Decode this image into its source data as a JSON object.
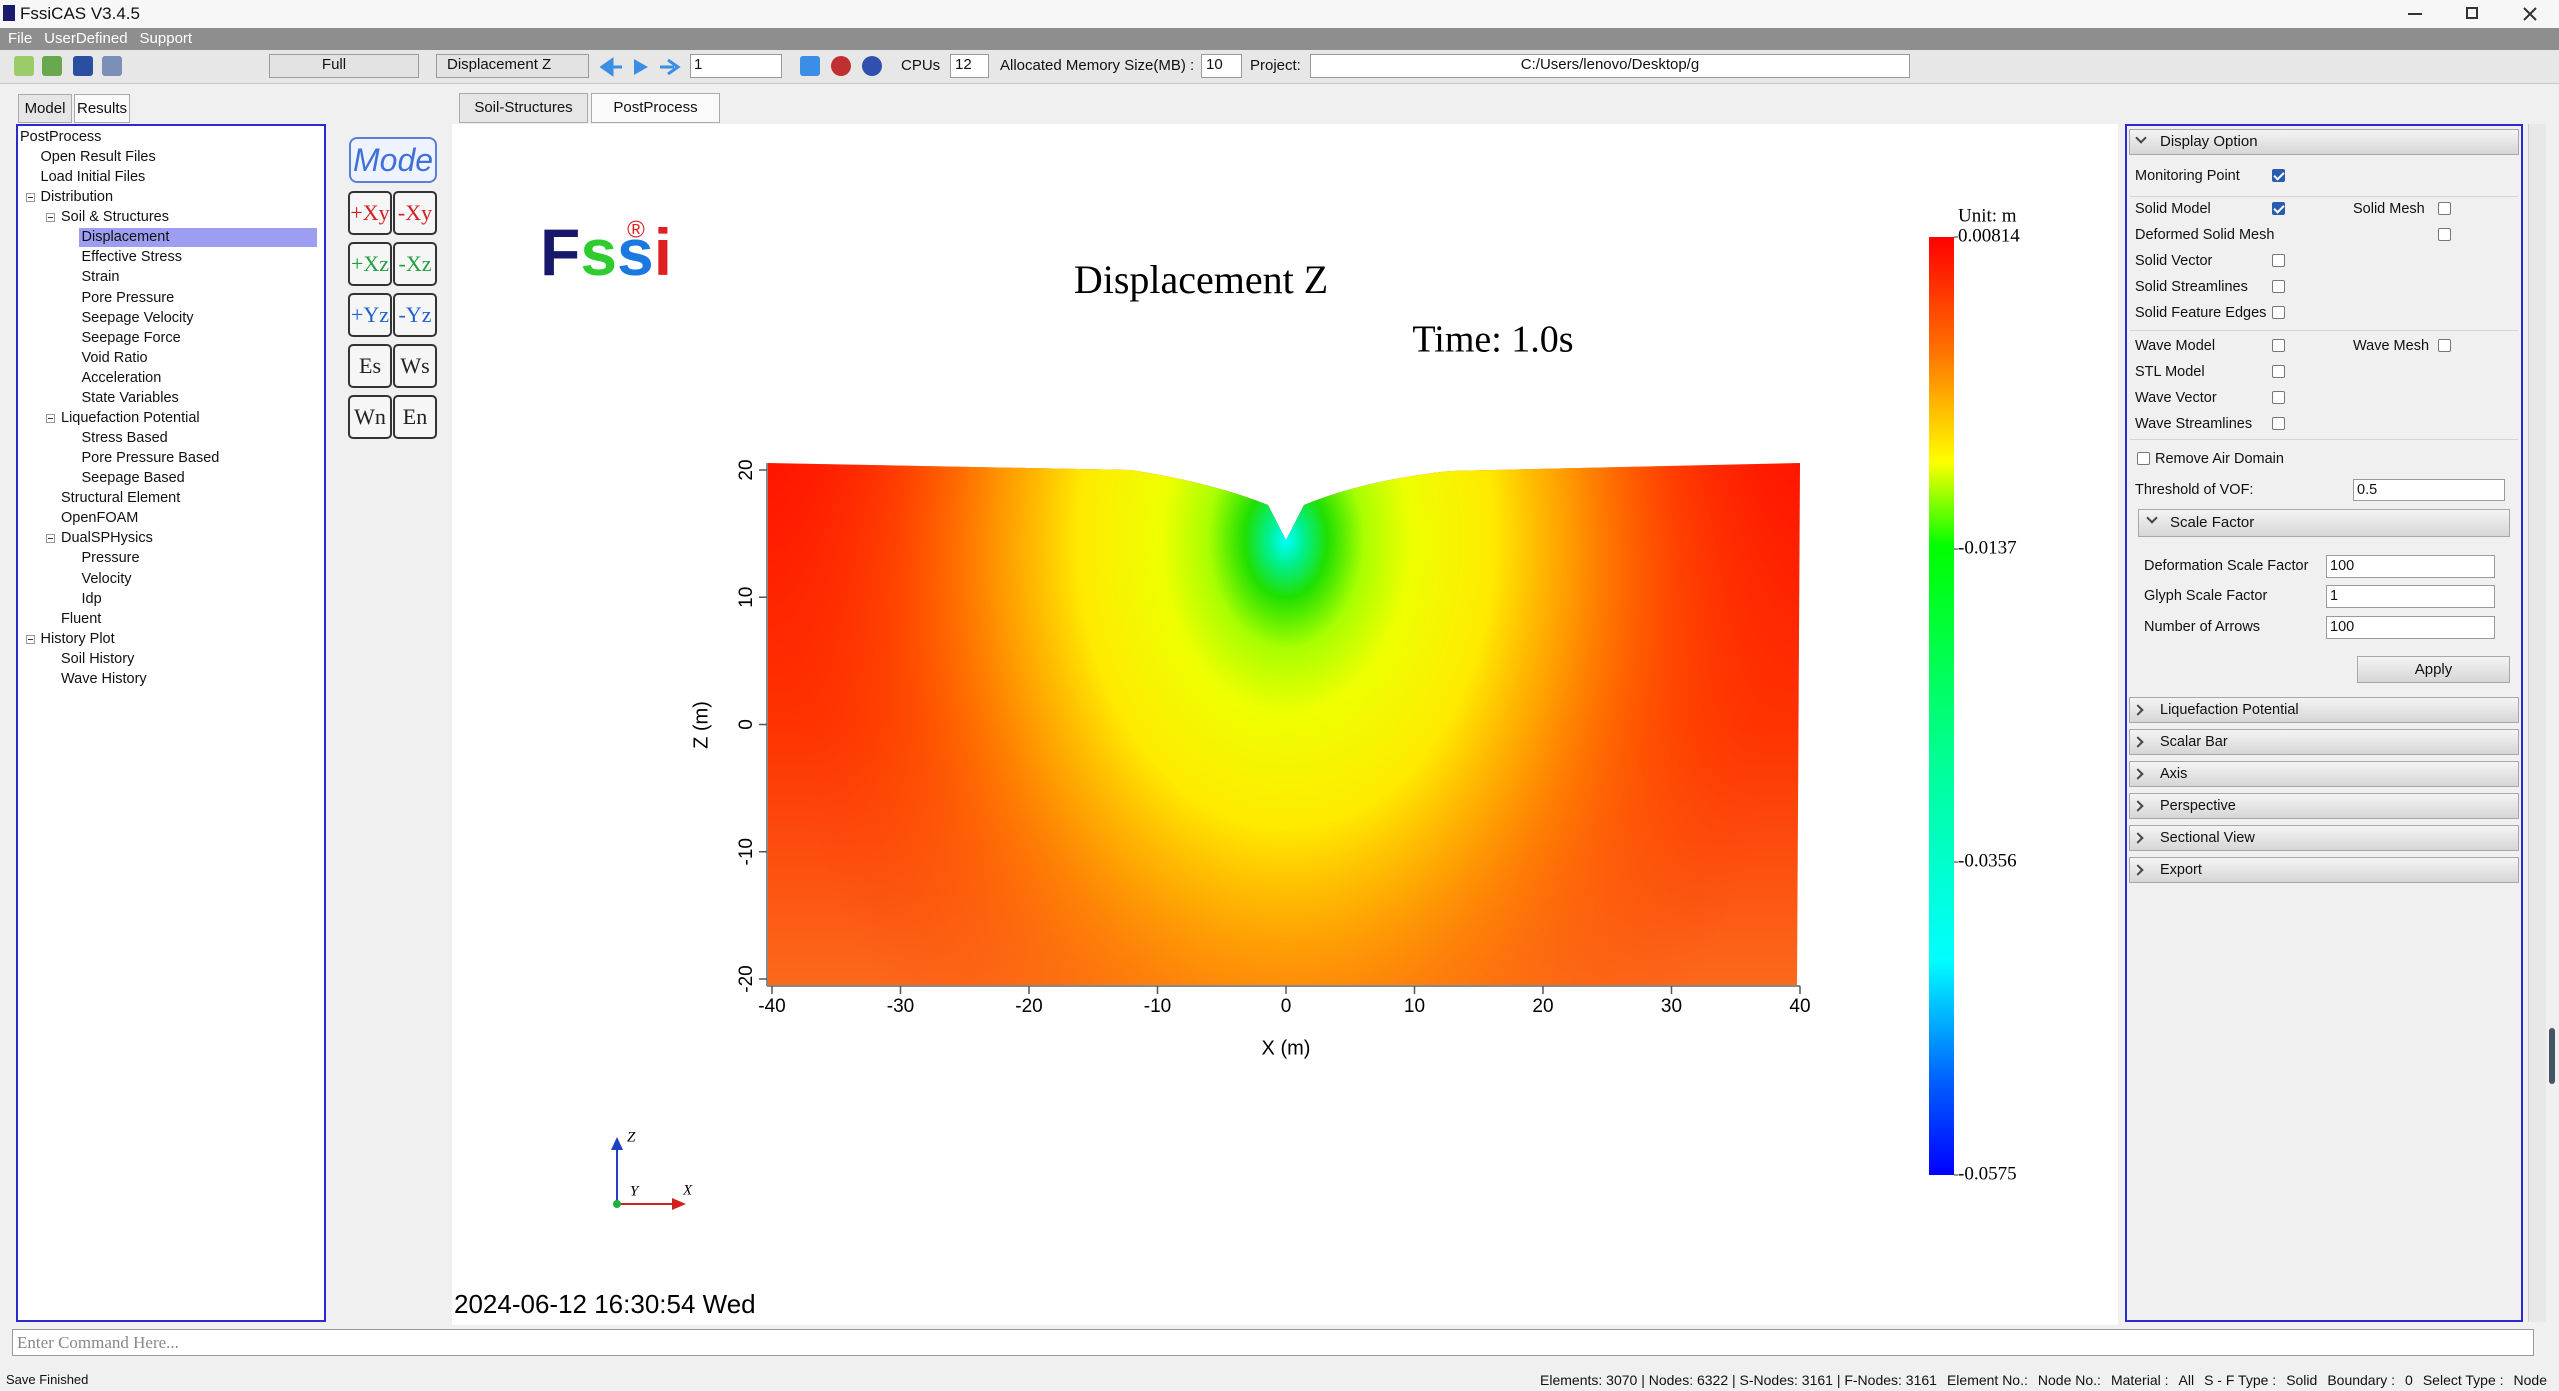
{
  "window": {
    "title": "FssiCAS V3.4.5"
  },
  "menu": [
    "File",
    "UserDefined",
    "Support"
  ],
  "toolbar": {
    "view_mode": "Full",
    "result": "Displacement Z",
    "frame": "1",
    "cpus_label": "CPUs",
    "cpus": "12",
    "memory_label": "Allocated Memory Size(MB) :",
    "memory": "10",
    "project_label": "Project:",
    "project": "C:/Users/lenovo/Desktop/g"
  },
  "left_tabs": [
    "Model",
    "Results"
  ],
  "tree": {
    "label": "PostProcess",
    "children": [
      {
        "label": "Open Result Files"
      },
      {
        "label": "Load Initial Files"
      },
      {
        "label": "Distribution",
        "children": [
          {
            "label": "Soil & Structures",
            "children": [
              {
                "label": "Displacement",
                "selected": true
              },
              {
                "label": "Effective Stress"
              },
              {
                "label": "Strain"
              },
              {
                "label": "Pore Pressure"
              },
              {
                "label": "Seepage Velocity"
              },
              {
                "label": "Seepage Force"
              },
              {
                "label": "Void Ratio"
              },
              {
                "label": "Acceleration"
              },
              {
                "label": "State Variables"
              }
            ]
          },
          {
            "label": "Liquefaction Potential",
            "children": [
              {
                "label": "Stress Based"
              },
              {
                "label": "Pore Pressure Based"
              },
              {
                "label": "Seepage Based"
              }
            ]
          },
          {
            "label": "Structural Element"
          },
          {
            "label": "OpenFOAM"
          },
          {
            "label": "DualSPHysics",
            "children": [
              {
                "label": "Pressure"
              },
              {
                "label": "Velocity"
              },
              {
                "label": "Idp"
              }
            ]
          },
          {
            "label": "Fluent"
          }
        ]
      },
      {
        "label": "History Plot",
        "children": [
          {
            "label": "Soil History"
          },
          {
            "label": "Wave History"
          }
        ]
      }
    ]
  },
  "view_tabs": [
    "Soil-Structures",
    "PostProcess"
  ],
  "view_buttons": {
    "mode": "Mode",
    "views": [
      "+Xy",
      "-Xy",
      "+Xz",
      "-Xz",
      "+Yz",
      "-Yz",
      "Es",
      "Ws",
      "Wn",
      "En"
    ]
  },
  "viewer": {
    "logo": "Fssi",
    "logo_mark": "®",
    "title": "Displacement Z",
    "time": "Time: 1.0s",
    "xlabel": "X (m)",
    "ylabel": "Z (m)",
    "xlim": [
      -40,
      40
    ],
    "xticks": [
      -40,
      -30,
      -20,
      -10,
      0,
      10,
      20,
      30,
      40
    ],
    "ylim": [
      -20,
      20
    ],
    "yticks": [
      -20,
      -10,
      0,
      10,
      20
    ],
    "colorbar": {
      "unit": "Unit:  m",
      "clim": [
        -0.0575,
        0.00814
      ],
      "ticks": [
        0.00814,
        -0.0137,
        -0.0356,
        -0.0575
      ]
    },
    "triad": [
      "Z",
      "Y",
      "X"
    ],
    "timestamp": "2024-06-12 16:30:54 Wed"
  },
  "display_option": {
    "title": "Display Option",
    "solid": [
      {
        "label": "Monitoring Point",
        "checked": true
      },
      {
        "label": "Solid Model",
        "checked": true
      },
      {
        "label": "Solid Mesh",
        "checked": false
      },
      {
        "label": "Deformed Solid Mesh",
        "checked": false
      },
      {
        "label": "Solid Vector",
        "checked": false
      },
      {
        "label": "Solid Streamlines",
        "checked": false
      },
      {
        "label": "Solid Feature Edges",
        "checked": false
      }
    ],
    "wave": [
      {
        "label": "Wave Model",
        "checked": false
      },
      {
        "label": "Wave Mesh",
        "checked": false
      },
      {
        "label": "STL Model",
        "checked": false
      },
      {
        "label": "Wave Vector",
        "checked": false
      },
      {
        "label": "Wave Streamlines",
        "checked": false
      }
    ],
    "remove_air": {
      "label": "Remove Air Domain",
      "checked": false
    },
    "vof": {
      "label": "Threshold of VOF:",
      "value": "0.5"
    },
    "scale_factor": {
      "title": "Scale Factor",
      "fields": [
        {
          "label": "Deformation Scale Factor",
          "value": "100"
        },
        {
          "label": "Glyph Scale Factor",
          "value": "1"
        },
        {
          "label": "Number of Arrows",
          "value": "100"
        }
      ],
      "apply": "Apply"
    }
  },
  "sections": [
    "Liquefaction Potential",
    "Scalar Bar",
    "Axis",
    "Perspective",
    "Sectional View",
    "Export"
  ],
  "command_placeholder": "Enter Command Here...",
  "status": {
    "message": "Save Finished",
    "counts": "Elements: 3070 | Nodes: 6322 | S-Nodes: 3161 | F-Nodes: 3161",
    "fields": [
      "Element No.:",
      "Node No.:",
      "Material :",
      "All",
      "S - F Type :",
      "Solid",
      "Boundary :",
      "0",
      "Select Type :",
      "Node"
    ]
  }
}
